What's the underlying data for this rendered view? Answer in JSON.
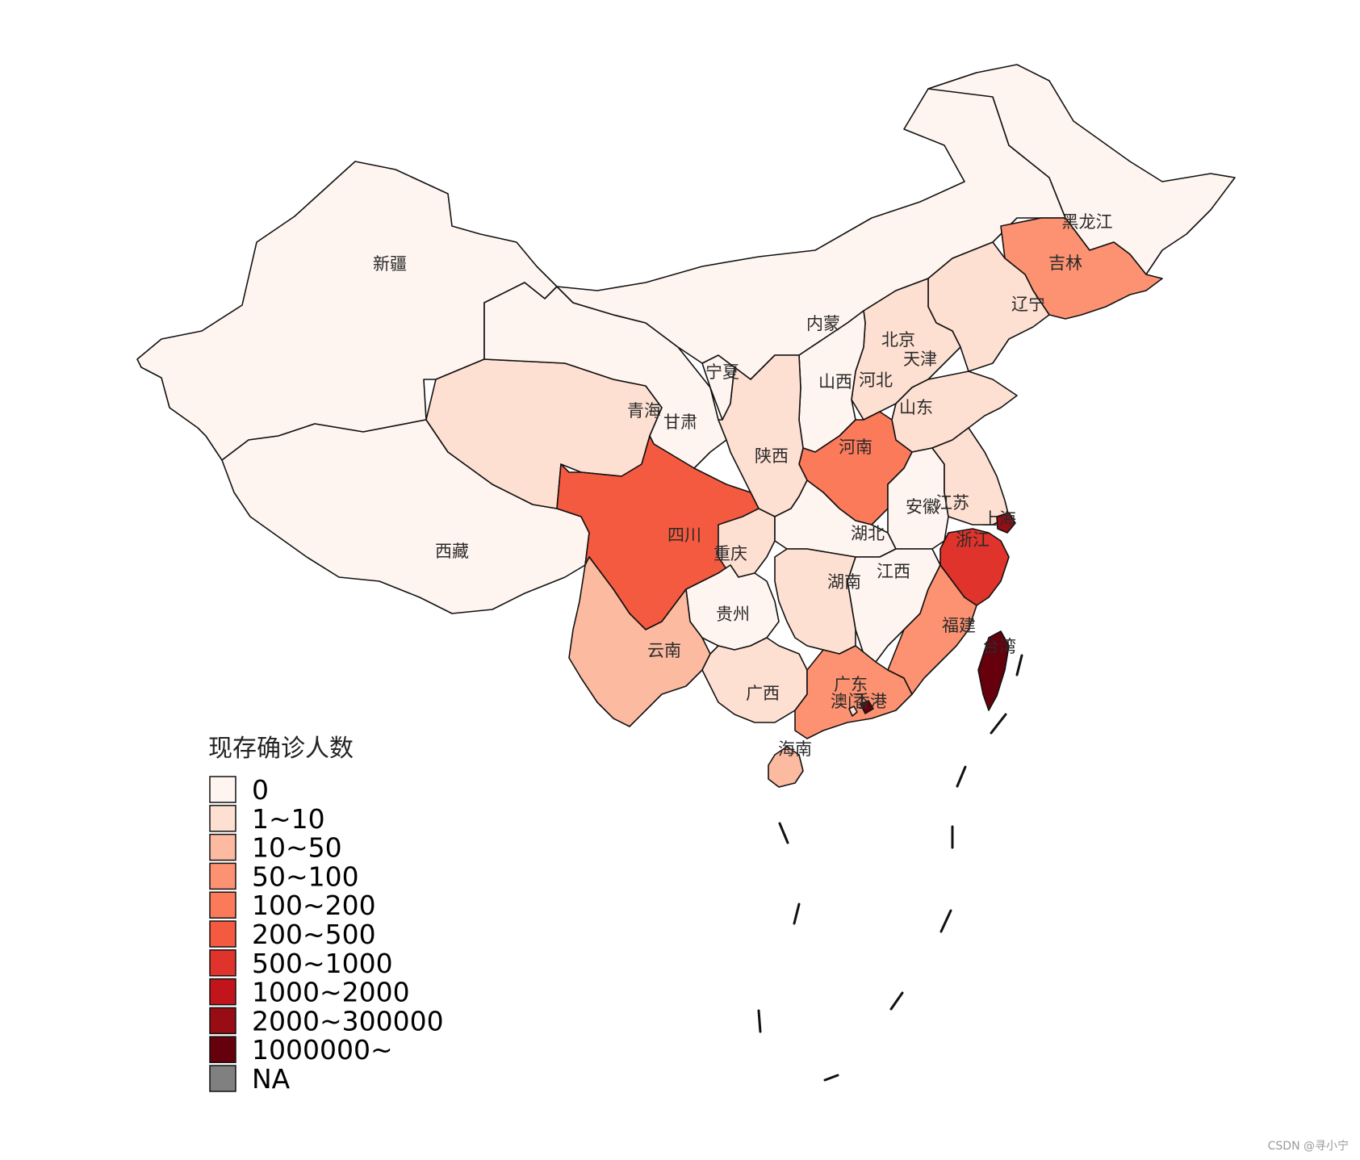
{
  "map": {
    "legend": {
      "title": "现存确诊人数",
      "classes": [
        {
          "label": "0",
          "color": "#FFF5F0"
        },
        {
          "label": "1~10",
          "color": "#FEE0D2"
        },
        {
          "label": "10~50",
          "color": "#FCBBA1"
        },
        {
          "label": "50~100",
          "color": "#FC9272"
        },
        {
          "label": "100~200",
          "color": "#FB7A5A"
        },
        {
          "label": "200~500",
          "color": "#F45A40"
        },
        {
          "label": "500~1000",
          "color": "#E0332B"
        },
        {
          "label": "1000~2000",
          "color": "#C1151B"
        },
        {
          "label": "2000~300000",
          "color": "#980C13"
        },
        {
          "label": "1000000~",
          "color": "#67000D"
        },
        {
          "label": "NA",
          "color": "#808080"
        }
      ]
    },
    "provinces": [
      {
        "name": "新疆",
        "class": 0
      },
      {
        "name": "西藏",
        "class": 0
      },
      {
        "name": "青海",
        "class": 1
      },
      {
        "name": "甘肃",
        "class": 0
      },
      {
        "name": "宁夏",
        "class": 0
      },
      {
        "name": "内蒙",
        "class": 0
      },
      {
        "name": "黑龙江",
        "class": 0
      },
      {
        "name": "吉林",
        "class": 3
      },
      {
        "name": "辽宁",
        "class": 1
      },
      {
        "name": "北京",
        "class": 5
      },
      {
        "name": "天津",
        "class": 4
      },
      {
        "name": "河北",
        "class": 1
      },
      {
        "name": "山西",
        "class": 0
      },
      {
        "name": "山东",
        "class": 1
      },
      {
        "name": "河南",
        "class": 4
      },
      {
        "name": "陕西",
        "class": 1
      },
      {
        "name": "四川",
        "class": 5
      },
      {
        "name": "重庆",
        "class": 1
      },
      {
        "name": "湖北",
        "class": 0
      },
      {
        "name": "安徽",
        "class": 0
      },
      {
        "name": "江苏",
        "class": 1
      },
      {
        "name": "上海",
        "class": 8
      },
      {
        "name": "浙江",
        "class": 6
      },
      {
        "name": "江西",
        "class": 0
      },
      {
        "name": "湖南",
        "class": 1
      },
      {
        "name": "贵州",
        "class": 0
      },
      {
        "name": "云南",
        "class": 2
      },
      {
        "name": "广西",
        "class": 1
      },
      {
        "name": "广东",
        "class": 3
      },
      {
        "name": "福建",
        "class": 3
      },
      {
        "name": "台湾",
        "class": 9
      },
      {
        "name": "海南",
        "class": 2
      },
      {
        "name": "澳门",
        "class": 1
      },
      {
        "name": "香港",
        "class": 9
      }
    ]
  },
  "watermark": "CSDN @寻小宁"
}
